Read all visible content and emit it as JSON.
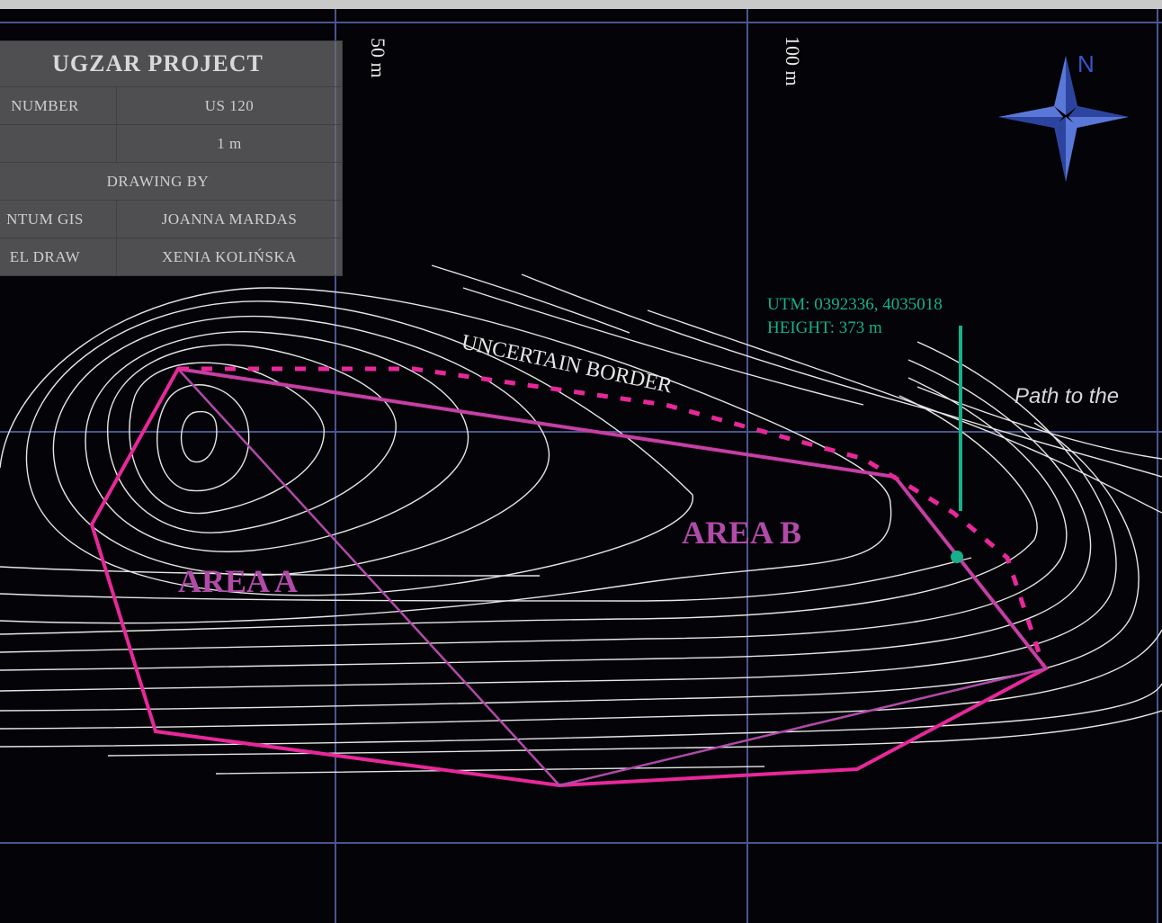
{
  "legend": {
    "title": "UGZAR PROJECT",
    "rows": [
      {
        "left": "NUMBER",
        "right": "US 120"
      },
      {
        "left": "",
        "right": "1 m"
      },
      {
        "full": "DRAWING BY"
      },
      {
        "left": "NTUM GIS",
        "right": "JOANNA MARDAS"
      },
      {
        "left": "EL DRAW",
        "right": "XENIA KOLIŃSKA"
      }
    ]
  },
  "grid_labels": {
    "x50": "50 m",
    "x100": "100 m"
  },
  "compass": {
    "label": "N",
    "icon": "north-arrow-compass-icon"
  },
  "point": {
    "utm": "UTM: 0392336, 4035018",
    "height": "HEIGHT: 373 m"
  },
  "labels": {
    "uncertain_border": "UNCERTAIN BORDER",
    "area_a": "AREA A",
    "area_b": "AREA B",
    "path": "Path to the"
  },
  "colors": {
    "background": "#030308",
    "grid": "#4a5590",
    "contours": "#e6e6e6",
    "area_outline": "#e8289a",
    "inner_lines": "#b24aa8",
    "point_marker": "#16b08a"
  }
}
